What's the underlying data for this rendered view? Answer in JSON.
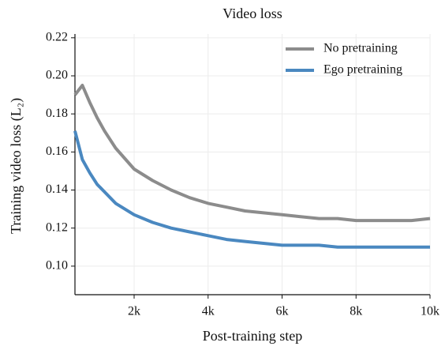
{
  "chart_data": {
    "type": "line",
    "title": "Video loss",
    "x_label": "Post-training step",
    "y_label": "Training video loss (L₂)",
    "x": [
      400,
      600,
      800,
      1000,
      1200,
      1500,
      2000,
      2500,
      3000,
      3500,
      4000,
      4500,
      5000,
      5500,
      6000,
      6500,
      7000,
      7500,
      8000,
      8500,
      9000,
      9500,
      10000
    ],
    "series": [
      {
        "name": "No pretraining",
        "color": "#8c8c8c",
        "values": [
          0.19,
          0.195,
          0.186,
          0.178,
          0.171,
          0.162,
          0.151,
          0.145,
          0.14,
          0.136,
          0.133,
          0.131,
          0.129,
          0.128,
          0.127,
          0.126,
          0.125,
          0.125,
          0.124,
          0.124,
          0.124,
          0.124,
          0.125
        ]
      },
      {
        "name": "Ego pretraining",
        "color": "#4a88c0",
        "values": [
          0.171,
          0.156,
          0.149,
          0.143,
          0.139,
          0.133,
          0.127,
          0.123,
          0.12,
          0.118,
          0.116,
          0.114,
          0.113,
          0.112,
          0.111,
          0.111,
          0.111,
          0.11,
          0.11,
          0.11,
          0.11,
          0.11,
          0.11
        ]
      }
    ],
    "xlim": [
      400,
      10000
    ],
    "xticks": [
      {
        "value": 2000,
        "label": "2k"
      },
      {
        "value": 4000,
        "label": "4k"
      },
      {
        "value": 6000,
        "label": "6k"
      },
      {
        "value": 8000,
        "label": "8k"
      },
      {
        "value": 10000,
        "label": "10k"
      }
    ],
    "ylim": [
      0.085,
      0.222
    ],
    "yticks": [
      {
        "value": 0.1,
        "label": "0.10"
      },
      0.12,
      0.14,
      0.16,
      0.18,
      {
        "value": 0.2,
        "label": "0.20"
      },
      0.22
    ],
    "grid": true,
    "legend": "upper right"
  }
}
